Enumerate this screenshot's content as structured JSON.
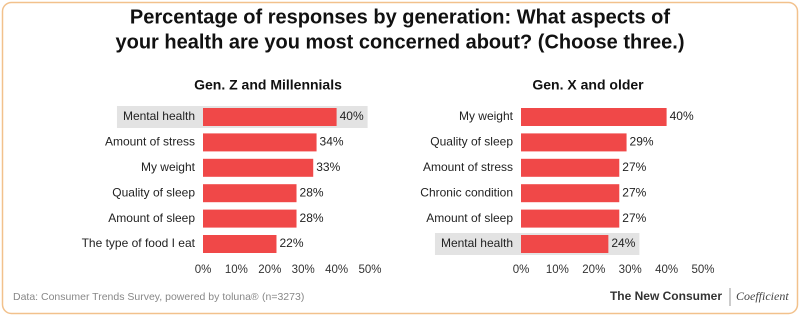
{
  "title": [
    "Percentage of responses by generation: What aspects of",
    "your health are you most concerned about? (Choose three.)"
  ],
  "chart_data": [
    {
      "type": "bar",
      "orientation": "horizontal",
      "title": "Gen. Z and Millennials",
      "categories": [
        "Mental health",
        "Amount of stress",
        "My weight",
        "Quality of sleep",
        "Amount of sleep",
        "The type of food I eat"
      ],
      "values": [
        40,
        34,
        33,
        28,
        28,
        22
      ],
      "value_labels": [
        "40%",
        "34%",
        "33%",
        "28%",
        "28%",
        "22%"
      ],
      "color": "#f04848",
      "highlight": 0,
      "xlim": [
        0,
        50
      ],
      "xticks": [
        {
          "value": 0,
          "label": "0%"
        },
        {
          "value": 10,
          "label": "10%"
        },
        {
          "value": 20,
          "label": "20%"
        },
        {
          "value": 30,
          "label": "30%"
        },
        {
          "value": 40,
          "label": "40%"
        },
        {
          "value": 50,
          "label": "50%"
        }
      ]
    },
    {
      "type": "bar",
      "orientation": "horizontal",
      "title": "Gen. X and older",
      "categories": [
        "My weight",
        "Quality of sleep",
        "Amount of stress",
        "Chronic condition",
        "Amount of sleep",
        "Mental health"
      ],
      "values": [
        40,
        29,
        27,
        27,
        27,
        24
      ],
      "value_labels": [
        "40%",
        "29%",
        "27%",
        "27%",
        "27%",
        "24%"
      ],
      "color": "#f04848",
      "highlight": 5,
      "xlim": [
        0,
        50
      ],
      "xticks": [
        {
          "value": 0,
          "label": "0%"
        },
        {
          "value": 10,
          "label": "10%"
        },
        {
          "value": 20,
          "label": "20%"
        },
        {
          "value": 30,
          "label": "30%"
        },
        {
          "value": 40,
          "label": "40%"
        },
        {
          "value": 50,
          "label": "50%"
        }
      ]
    }
  ],
  "footer": {
    "source": "Data: Consumer Trends Survey, powered by toluna®",
    "n": "(n=3273)",
    "brand": "The New Consumer",
    "partner": "Coefficient"
  }
}
